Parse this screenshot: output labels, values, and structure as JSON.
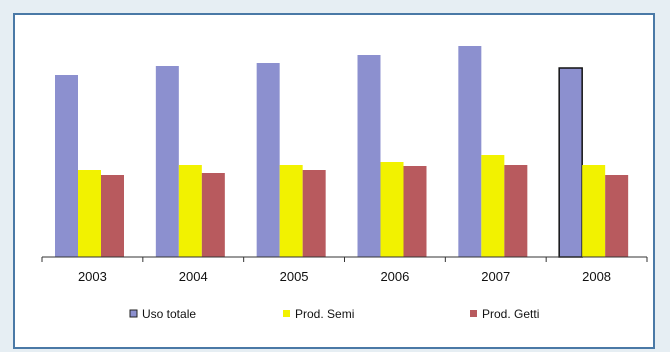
{
  "chart_data": {
    "type": "bar",
    "title": "",
    "xlabel": "",
    "ylabel": "",
    "categories": [
      "2003",
      "2004",
      "2005",
      "2006",
      "2007",
      "2008"
    ],
    "series": [
      {
        "name": "Uso totale",
        "color": "#8c90cf",
        "values": [
          182,
          191,
          194,
          202,
          211,
          189
        ]
      },
      {
        "name": "Prod. Semi",
        "color": "#f2f200",
        "values": [
          87,
          92,
          92,
          95,
          102,
          92
        ]
      },
      {
        "name": "Prod. Getti",
        "color": "#b85a5e",
        "values": [
          82,
          84,
          87,
          91,
          92,
          82
        ]
      }
    ],
    "highlighted": {
      "series": 0,
      "category": 5
    },
    "ylim": [
      0,
      230
    ],
    "grid": false,
    "legend_position": "bottom"
  }
}
